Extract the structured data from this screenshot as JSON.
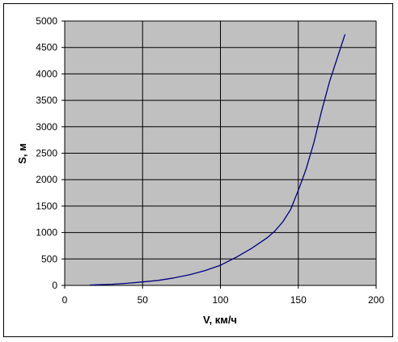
{
  "chart_data": {
    "type": "line",
    "title": "",
    "xlabel": "V, км/ч",
    "ylabel": "S, м",
    "xlim": [
      0,
      200
    ],
    "ylim": [
      0,
      5000
    ],
    "x_ticks": [
      0,
      50,
      100,
      150,
      200
    ],
    "y_ticks": [
      0,
      500,
      1000,
      1500,
      2000,
      2500,
      3000,
      3500,
      4000,
      4500,
      5000
    ],
    "grid": true,
    "legend": "none",
    "colors": {
      "plot_background": "#c0c0c0",
      "line": "#000080",
      "grid": "#000000"
    },
    "series": [
      {
        "x": [
          16,
          20,
          30,
          40,
          50,
          60,
          70,
          80,
          90,
          100,
          110,
          120,
          130,
          135,
          140,
          145,
          150,
          155,
          160,
          165,
          170,
          175,
          180
        ],
        "y": [
          5,
          10,
          22,
          40,
          65,
          95,
          140,
          200,
          280,
          380,
          530,
          700,
          900,
          1030,
          1200,
          1430,
          1800,
          2200,
          2700,
          3300,
          3850,
          4300,
          4750
        ]
      }
    ]
  }
}
